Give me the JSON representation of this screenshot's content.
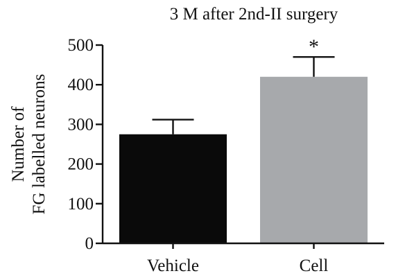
{
  "chart_data": {
    "type": "bar",
    "title": "3 M after 2nd-II surgery",
    "ylabel_lines": [
      "Number of",
      "FG labelled neurons"
    ],
    "xlabel": "",
    "categories": [
      "Vehicle",
      "Cell"
    ],
    "values": [
      275,
      420
    ],
    "error_bars": [
      37,
      50
    ],
    "significance": [
      "",
      "*"
    ],
    "bar_colors": [
      "#0a0a0a",
      "#a7a9ac"
    ],
    "ylim": [
      0,
      500
    ],
    "yticks": [
      0,
      100,
      200,
      300,
      400,
      500
    ],
    "ytick_labels": [
      "0",
      "100",
      "200",
      "300",
      "400",
      "500"
    ],
    "grid": false,
    "legend": "none"
  }
}
